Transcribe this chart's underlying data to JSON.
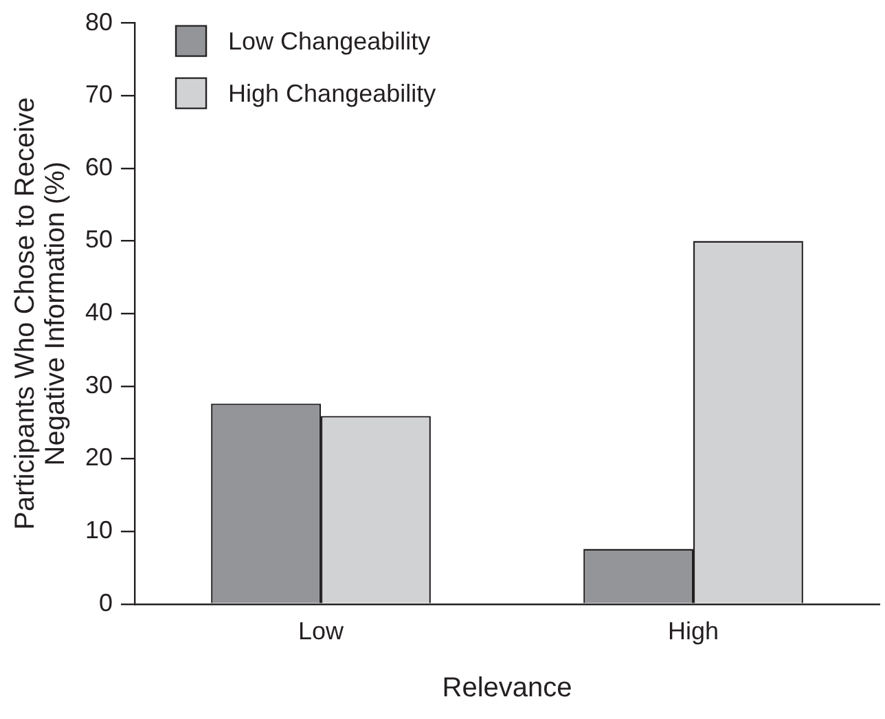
{
  "chart_data": {
    "type": "bar",
    "xlabel": "Relevance",
    "ylabel": "Participants Who Chose to Receive\nNegative Information (%)",
    "categories": [
      "Low",
      "High"
    ],
    "series": [
      {
        "name": "Low Changeability",
        "color": "#939598",
        "values": [
          27.6,
          7.6
        ]
      },
      {
        "name": "High Changeability",
        "color": "#d1d2d4",
        "values": [
          25.9,
          50
        ]
      }
    ],
    "ylim": [
      0,
      80
    ],
    "yticks": [
      0,
      10,
      20,
      30,
      40,
      50,
      60,
      70,
      80
    ],
    "grid": false,
    "legend": "top left"
  }
}
